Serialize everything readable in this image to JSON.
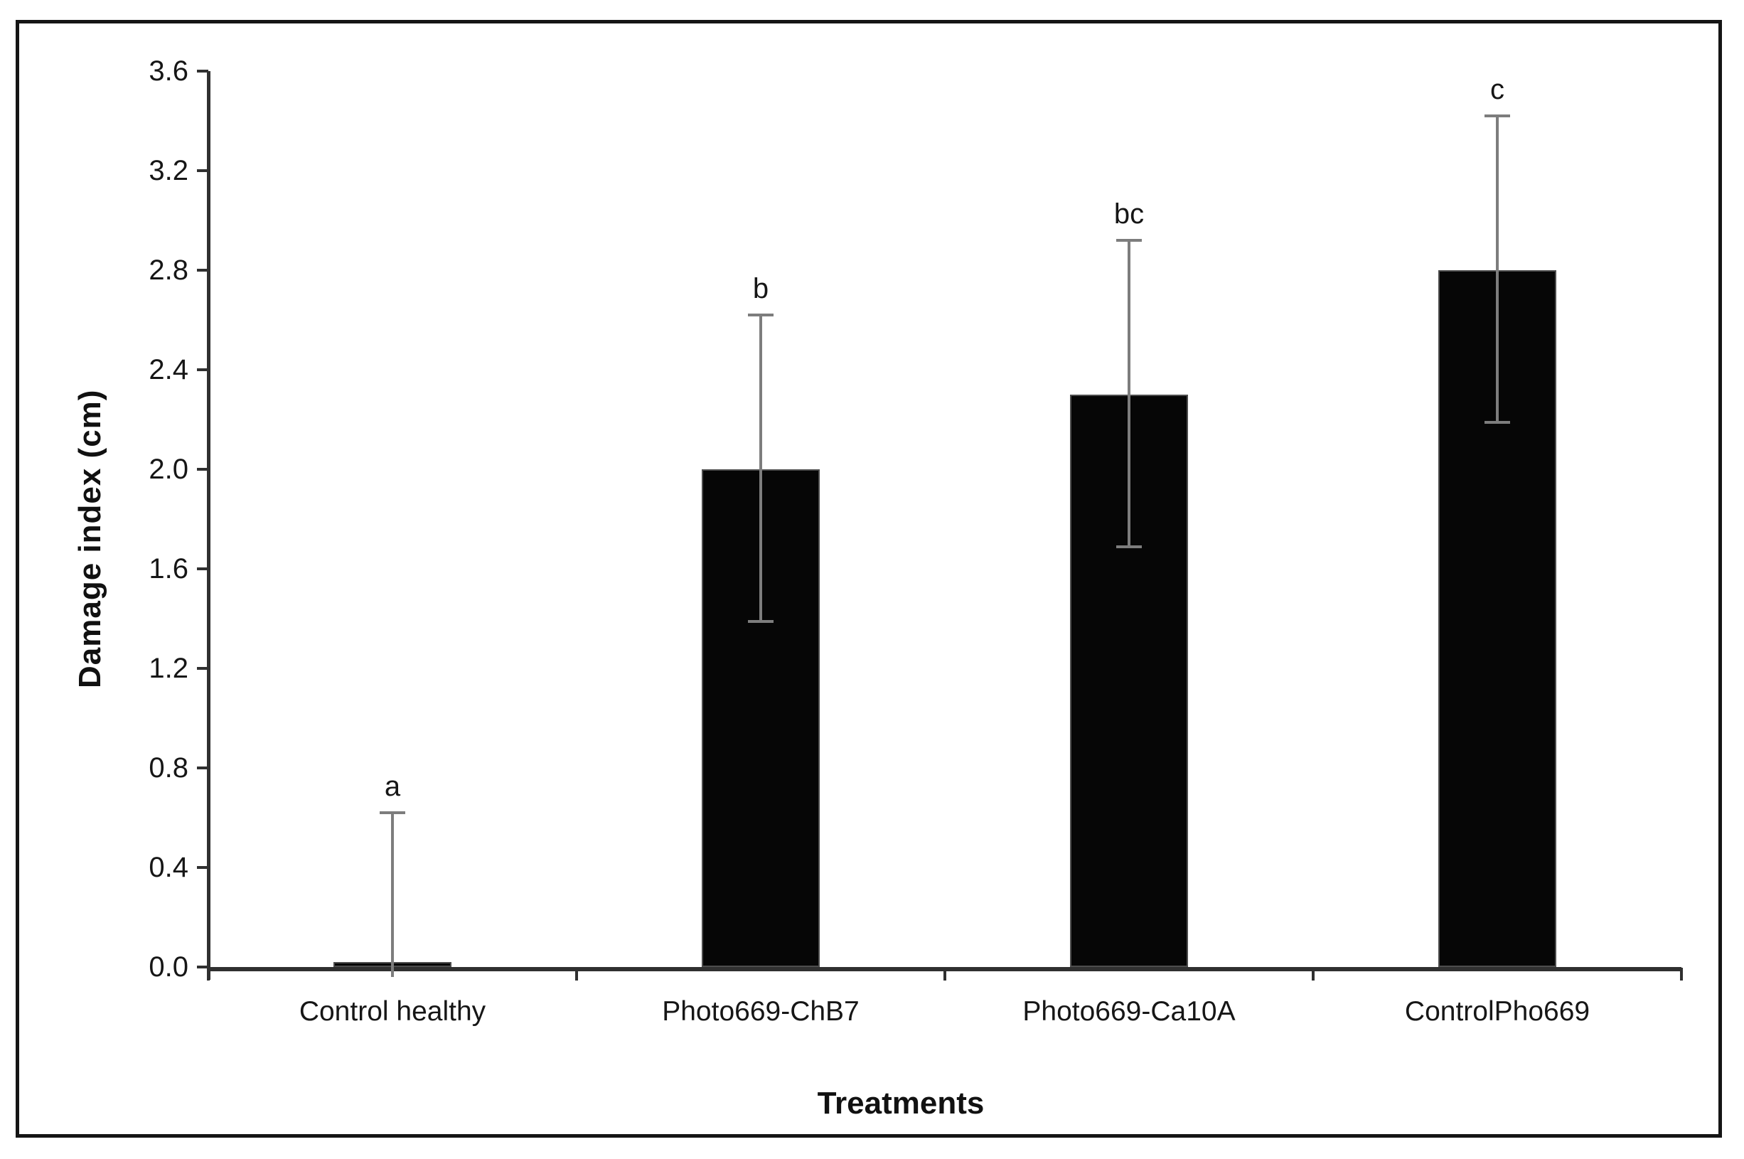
{
  "figure": {
    "background_color": "#ffffff",
    "border_color": "#151515"
  },
  "chart_data": {
    "type": "bar",
    "title": "",
    "xlabel": "Treatments",
    "ylabel": "Damage index (cm)",
    "categories": [
      "Control healthy",
      "Photo669-ChB7",
      "Photo669-Ca10A",
      "ControlPho669"
    ],
    "values": [
      0.02,
      2.0,
      2.3,
      2.8
    ],
    "error_cap_upper": [
      0.62,
      2.62,
      2.92,
      3.42
    ],
    "error_cap_lower": [
      0,
      1.39,
      1.69,
      2.19
    ],
    "sig_letters": [
      "a",
      "b",
      "bc",
      "c"
    ],
    "ylim": [
      0,
      3.6
    ],
    "ytick_step": 0.4,
    "yticks": [
      "0.0",
      "0.4",
      "0.8",
      "1.2",
      "1.6",
      "2.0",
      "2.4",
      "2.8",
      "3.2",
      "3.6"
    ],
    "grid": "off",
    "legend": "none",
    "bar_color": "#060606",
    "bar_border_color": "#4d4d4d",
    "error_bar_color": "#7d7d7d",
    "axis_color": "#303030",
    "text_color": "#161616"
  }
}
